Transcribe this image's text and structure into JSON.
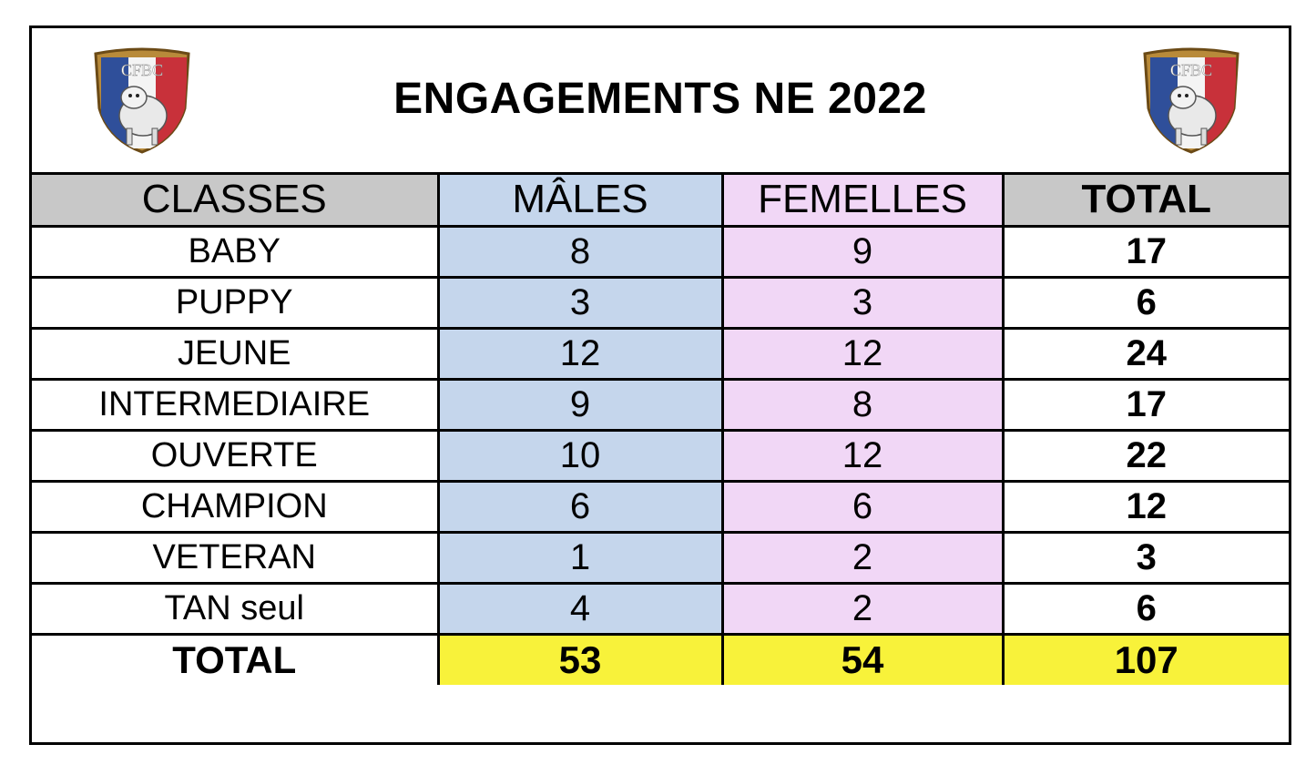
{
  "title": "ENGAGEMENTS NE 2022",
  "logo": {
    "text": "CFBC"
  },
  "colors": {
    "header_gray": "#c8c8c8",
    "males_blue": "#c5d6ec",
    "femelles_pink": "#f1d7f6",
    "total_yellow": "#f8f23a"
  },
  "table": {
    "headers": {
      "classes": "CLASSES",
      "males": "MÂLES",
      "femelles": "FEMELLES",
      "total": "TOTAL"
    },
    "rows": [
      {
        "classe": "BABY",
        "males": "8",
        "femelles": "9",
        "total": "17"
      },
      {
        "classe": "PUPPY",
        "males": "3",
        "femelles": "3",
        "total": "6"
      },
      {
        "classe": "JEUNE",
        "males": "12",
        "femelles": "12",
        "total": "24"
      },
      {
        "classe": "INTERMEDIAIRE",
        "males": "9",
        "femelles": "8",
        "total": "17"
      },
      {
        "classe": "OUVERTE",
        "males": "10",
        "femelles": "12",
        "total": "22"
      },
      {
        "classe": "CHAMPION",
        "males": "6",
        "femelles": "6",
        "total": "12"
      },
      {
        "classe": "VETERAN",
        "males": "1",
        "femelles": "2",
        "total": "3"
      },
      {
        "classe": "TAN seul",
        "males": "4",
        "femelles": "2",
        "total": "6"
      }
    ],
    "totals": {
      "label": "TOTAL",
      "males": "53",
      "femelles": "54",
      "total": "107"
    }
  }
}
